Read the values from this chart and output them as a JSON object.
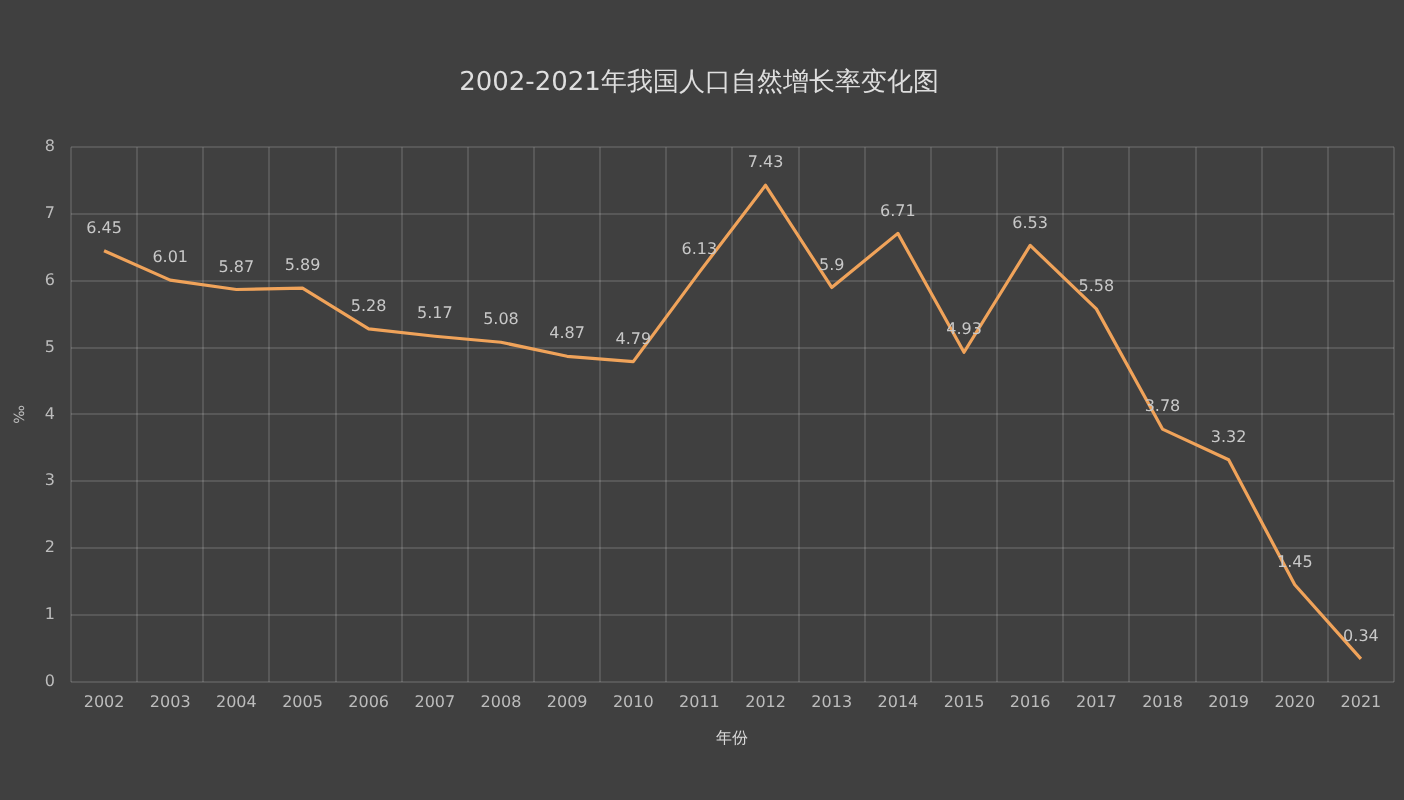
{
  "chart_data": {
    "type": "line",
    "title": "2002-2021年我国人口自然增长率变化图",
    "xlabel": "年份",
    "ylabel": "‰",
    "categories": [
      "2002",
      "2003",
      "2004",
      "2005",
      "2006",
      "2007",
      "2008",
      "2009",
      "2010",
      "2011",
      "2012",
      "2013",
      "2014",
      "2015",
      "2016",
      "2017",
      "2018",
      "2019",
      "2020",
      "2021"
    ],
    "series": [
      {
        "color": "#f0a35a",
        "values": [
          6.45,
          6.01,
          5.87,
          5.89,
          5.28,
          5.17,
          5.08,
          4.87,
          4.79,
          6.13,
          7.43,
          5.9,
          6.71,
          4.93,
          6.53,
          5.58,
          3.78,
          3.32,
          1.45,
          0.34
        ]
      }
    ],
    "ylim": [
      0,
      8
    ],
    "yticks": [
      0,
      1,
      2,
      3,
      4,
      5,
      6,
      7,
      8
    ],
    "grid": true,
    "data_labels": true,
    "marker": "none",
    "legend": false
  }
}
